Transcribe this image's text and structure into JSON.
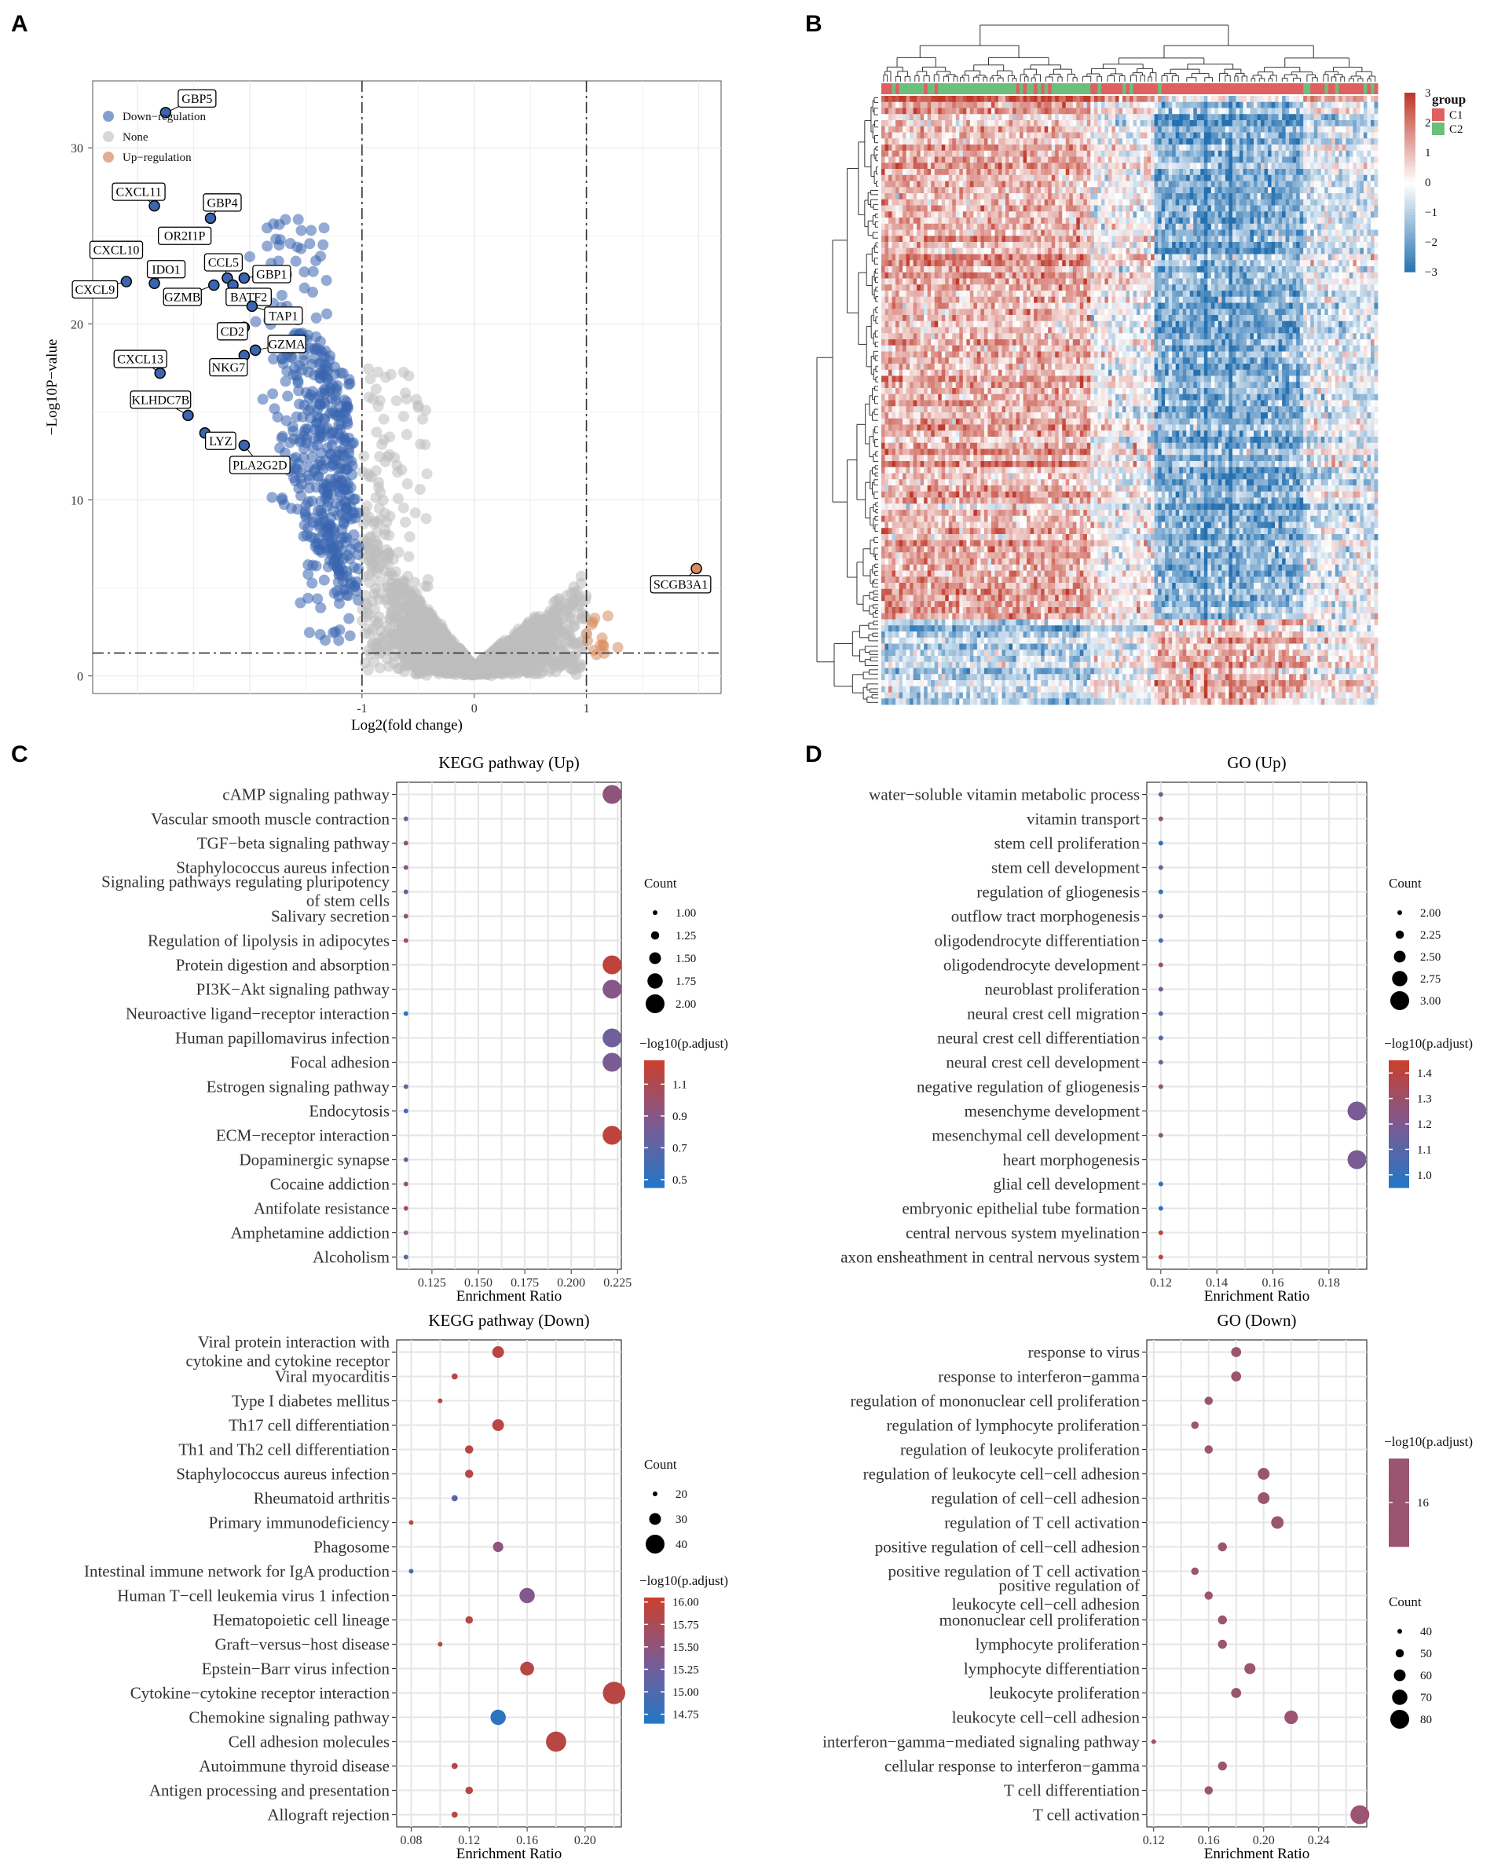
{
  "panel_letters": [
    "A",
    "B",
    "C",
    "D"
  ],
  "chart_data": [
    {
      "id": "A",
      "type": "scatter",
      "title": "",
      "xlabel": "Log2(fold change)",
      "ylabel": "−Log10P−value",
      "xlim": [
        -3.4,
        2.2
      ],
      "ylim": [
        -1,
        33.8
      ],
      "xticks": [
        -1,
        0,
        1
      ],
      "yticks": [
        0,
        10,
        20,
        30
      ],
      "thresholds": {
        "x": [
          -1,
          1
        ],
        "y": 1.3
      },
      "legend": [
        {
          "label": "Down−regulation",
          "color": "#5b7fbf"
        },
        {
          "label": "None",
          "color": "#c9c9c9"
        },
        {
          "label": "Up−regulation",
          "color": "#d9906a"
        }
      ],
      "colors": {
        "down": "#3a66b0",
        "none": "#bdbdbd",
        "up": "#d98a5e"
      },
      "labeled_genes": [
        {
          "gene": "GBP5",
          "x": -2.75,
          "y": 32.0
        },
        {
          "gene": "CXCL11",
          "x": -2.85,
          "y": 26.7
        },
        {
          "gene": "GBP4",
          "x": -2.35,
          "y": 26.0
        },
        {
          "gene": "OR2I1P",
          "x": -2.72,
          "y": 25.0
        },
        {
          "gene": "CXCL10",
          "x": -3.05,
          "y": 24.2
        },
        {
          "gene": "IDO1",
          "x": -2.85,
          "y": 22.3
        },
        {
          "gene": "CCL5",
          "x": -2.2,
          "y": 22.6
        },
        {
          "gene": "GBP1",
          "x": -2.05,
          "y": 22.6
        },
        {
          "gene": "CXCL9",
          "x": -3.1,
          "y": 22.4
        },
        {
          "gene": "GZMB",
          "x": -2.32,
          "y": 22.2
        },
        {
          "gene": "BATF2",
          "x": -2.15,
          "y": 22.2
        },
        {
          "gene": "TAP1",
          "x": -1.98,
          "y": 21.0
        },
        {
          "gene": "CD2",
          "x": -2.05,
          "y": 19.8
        },
        {
          "gene": "GZMA",
          "x": -1.95,
          "y": 18.5
        },
        {
          "gene": "NKG7",
          "x": -2.05,
          "y": 18.2
        },
        {
          "gene": "CXCL13",
          "x": -2.8,
          "y": 17.2
        },
        {
          "gene": "KLHDC7B",
          "x": -2.55,
          "y": 14.8
        },
        {
          "gene": "LYZ",
          "x": -2.4,
          "y": 13.8
        },
        {
          "gene": "PLA2G2D",
          "x": -2.05,
          "y": 13.1
        },
        {
          "gene": "SCGB3A1",
          "x": 1.98,
          "y": 6.1
        }
      ]
    },
    {
      "id": "B",
      "type": "heatmap",
      "legend_title": "group",
      "groups": [
        {
          "name": "C1",
          "color": "#e06060"
        },
        {
          "name": "C2",
          "color": "#6cbf7a"
        }
      ],
      "color_scale": {
        "min": -3,
        "max": 3,
        "ticks": [
          3,
          2,
          1,
          0,
          -1,
          -2,
          -3
        ],
        "low": "#2470b0",
        "mid": "#ffffff",
        "high": "#c0392b"
      },
      "n_rows": 100,
      "n_cols": 140
    },
    {
      "id": "C-up",
      "type": "scatter",
      "title": "KEGG pathway (Up)",
      "xlabel": "Enrichment Ratio",
      "xlim": [
        0.106,
        0.227
      ],
      "xticks": [
        0.125,
        0.15,
        0.175,
        0.2,
        0.225
      ],
      "xtick_labels": [
        "0.125",
        "0.150",
        "0.175",
        "0.200",
        "0.225"
      ],
      "categories": [
        "cAMP signaling pathway",
        "Vascular smooth muscle contraction",
        "TGF−beta signaling pathway",
        "Staphylococcus aureus infection",
        "Signaling pathways regulating pluripotency|of stem cells",
        "Salivary secretion",
        "Regulation of lipolysis in adipocytes",
        "Protein digestion and absorption",
        "PI3K−Akt signaling pathway",
        "Neuroactive ligand−receptor interaction",
        "Human papillomavirus infection",
        "Focal adhesion",
        "Estrogen signaling pathway",
        "Endocytosis",
        "ECM−receptor interaction",
        "Dopaminergic synapse",
        "Cocaine addiction",
        "Antifolate resistance",
        "Amphetamine addiction",
        "Alcoholism"
      ],
      "x": [
        0.222,
        0.111,
        0.111,
        0.111,
        0.111,
        0.111,
        0.111,
        0.222,
        0.222,
        0.111,
        0.222,
        0.222,
        0.111,
        0.111,
        0.222,
        0.111,
        0.111,
        0.111,
        0.111,
        0.111
      ],
      "count": [
        2,
        1,
        1,
        1,
        1,
        1,
        1,
        2,
        2,
        1,
        2,
        2,
        1,
        1,
        2,
        1,
        1,
        1,
        1,
        1
      ],
      "color_value": [
        0.95,
        0.85,
        0.95,
        0.9,
        0.75,
        0.95,
        1.05,
        1.2,
        0.9,
        0.5,
        0.8,
        0.85,
        0.85,
        0.6,
        1.2,
        0.8,
        0.95,
        1.05,
        0.9,
        0.7
      ],
      "size_legend": {
        "title": "Count",
        "values": [
          1.0,
          1.25,
          1.5,
          1.75,
          2.0
        ],
        "labels": [
          "1.00",
          "1.25",
          "1.50",
          "1.75",
          "2.00"
        ]
      },
      "color_legend": {
        "title": "−log10(p.adjust)",
        "range": [
          0.45,
          1.25
        ],
        "ticks": [
          1.1,
          0.9,
          0.7,
          0.5
        ],
        "labels": [
          "1.1",
          "0.9",
          "0.7",
          "0.5"
        ]
      }
    },
    {
      "id": "D-up",
      "type": "scatter",
      "title": "GO (Up)",
      "xlabel": "Enrichment Ratio",
      "xlim": [
        0.115,
        0.1935
      ],
      "xticks": [
        0.12,
        0.14,
        0.16,
        0.18
      ],
      "xtick_labels": [
        "0.12",
        "0.14",
        "0.16",
        "0.18"
      ],
      "categories": [
        "water−soluble vitamin metabolic process",
        "vitamin transport",
        "stem cell proliferation",
        "stem cell development",
        "regulation of gliogenesis",
        "outflow tract morphogenesis",
        "oligodendrocyte differentiation",
        "oligodendrocyte development",
        "neuroblast proliferation",
        "neural crest cell migration",
        "neural crest cell differentiation",
        "neural crest cell development",
        "negative regulation of gliogenesis",
        "mesenchyme development",
        "mesenchymal cell development",
        "heart morphogenesis",
        "glial cell development",
        "embryonic epithelial tube formation",
        "central nervous system myelination",
        "axon ensheathment in central nervous system"
      ],
      "x": [
        0.12,
        0.12,
        0.12,
        0.12,
        0.12,
        0.12,
        0.12,
        0.12,
        0.12,
        0.12,
        0.12,
        0.12,
        0.12,
        0.19,
        0.12,
        0.19,
        0.12,
        0.12,
        0.12,
        0.12
      ],
      "count": [
        2,
        2,
        2,
        2,
        2,
        2,
        2,
        2,
        2,
        2,
        2,
        2,
        2,
        3,
        2,
        3,
        2,
        2,
        2,
        2
      ],
      "color_value": [
        1.2,
        1.3,
        1.0,
        1.2,
        1.0,
        1.2,
        1.05,
        1.3,
        1.2,
        1.1,
        1.1,
        1.2,
        1.3,
        1.2,
        1.25,
        1.2,
        1.0,
        1.0,
        1.4,
        1.4
      ],
      "size_legend": {
        "title": "Count",
        "values": [
          2.0,
          2.25,
          2.5,
          2.75,
          3.0
        ],
        "labels": [
          "2.00",
          "2.25",
          "2.50",
          "2.75",
          "3.00"
        ]
      },
      "color_legend": {
        "title": "−log10(p.adjust)",
        "range": [
          0.95,
          1.45
        ],
        "ticks": [
          1.4,
          1.3,
          1.2,
          1.1,
          1.0
        ],
        "labels": [
          "1.4",
          "1.3",
          "1.2",
          "1.1",
          "1.0"
        ]
      }
    },
    {
      "id": "C-down",
      "type": "scatter",
      "title": "KEGG pathway (Down)",
      "xlabel": "Enrichment Ratio",
      "xlim": [
        0.07,
        0.225
      ],
      "xticks": [
        0.08,
        0.12,
        0.16,
        0.2
      ],
      "xtick_labels": [
        "0.08",
        "0.12",
        "0.16",
        "0.20"
      ],
      "categories": [
        "Viral protein interaction with|cytokine and cytokine receptor",
        "Viral myocarditis",
        "Type I diabetes mellitus",
        "Th17 cell differentiation",
        "Th1 and Th2 cell differentiation",
        "Staphylococcus aureus infection",
        "Rheumatoid arthritis",
        "Primary immunodeficiency",
        "Phagosome",
        "Intestinal immune network for IgA production",
        "Human T−cell leukemia virus 1 infection",
        "Hematopoietic cell lineage",
        "Graft−versus−host disease",
        "Epstein−Barr virus infection",
        "Cytokine−cytokine receptor interaction",
        "Chemokine signaling pathway",
        "Cell adhesion molecules",
        "Autoimmune thyroid disease",
        "Antigen processing and presentation",
        "Allograft rejection"
      ],
      "x": [
        0.14,
        0.11,
        0.1,
        0.14,
        0.12,
        0.12,
        0.11,
        0.08,
        0.14,
        0.08,
        0.16,
        0.12,
        0.1,
        0.16,
        0.22,
        0.14,
        0.18,
        0.11,
        0.12,
        0.11
      ],
      "count": [
        30,
        22,
        20,
        30,
        25,
        25,
        22,
        12,
        28,
        12,
        35,
        24,
        20,
        33,
        45,
        35,
        42,
        22,
        24,
        22
      ],
      "color_value": [
        15.9,
        15.9,
        15.9,
        15.9,
        15.9,
        15.9,
        15.1,
        15.9,
        15.5,
        15.0,
        15.4,
        15.9,
        15.9,
        15.9,
        15.9,
        14.75,
        15.9,
        15.9,
        15.9,
        15.9
      ],
      "size_legend": {
        "title": "Count",
        "values": [
          20,
          30,
          40
        ],
        "labels": [
          "20",
          "30",
          "40"
        ]
      },
      "color_legend": {
        "title": "−log10(p.adjust)",
        "range": [
          14.65,
          16.05
        ],
        "ticks": [
          16.0,
          15.75,
          15.5,
          15.25,
          15.0,
          14.75
        ],
        "labels": [
          "16.00",
          "15.75",
          "15.50",
          "15.25",
          "15.00",
          "14.75"
        ]
      }
    },
    {
      "id": "D-down",
      "type": "scatter",
      "title": "GO (Down)",
      "xlabel": "Enrichment Ratio",
      "xlim": [
        0.115,
        0.275
      ],
      "xticks": [
        0.12,
        0.16,
        0.2,
        0.24
      ],
      "xtick_labels": [
        "0.12",
        "0.16",
        "0.20",
        "0.24"
      ],
      "categories": [
        "response to virus",
        "response to interferon−gamma",
        "regulation of mononuclear cell proliferation",
        "regulation of lymphocyte proliferation",
        "regulation of leukocyte proliferation",
        "regulation of leukocyte cell−cell adhesion",
        "regulation of cell−cell adhesion",
        "regulation of T cell activation",
        "positive regulation of cell−cell adhesion",
        "positive regulation of T cell activation",
        "positive regulation of|leukocyte cell−cell adhesion",
        "mononuclear cell proliferation",
        "lymphocyte proliferation",
        "lymphocyte differentiation",
        "leukocyte proliferation",
        "leukocyte cell−cell adhesion",
        "interferon−gamma−mediated signaling pathway",
        "cellular response to interferon−gamma",
        "T cell differentiation",
        "T cell activation"
      ],
      "x": [
        0.18,
        0.18,
        0.16,
        0.15,
        0.16,
        0.2,
        0.2,
        0.21,
        0.17,
        0.15,
        0.16,
        0.17,
        0.17,
        0.19,
        0.18,
        0.22,
        0.12,
        0.17,
        0.16,
        0.27
      ],
      "count": [
        55,
        55,
        50,
        48,
        50,
        60,
        60,
        62,
        52,
        48,
        50,
        52,
        52,
        58,
        55,
        65,
        35,
        52,
        50,
        80
      ],
      "color_value": [
        16,
        16,
        16,
        16,
        16,
        16,
        16,
        16,
        16,
        16,
        16,
        16,
        16,
        16,
        16,
        16,
        16,
        16,
        16,
        16
      ],
      "size_legend": {
        "title": "Count",
        "values": [
          40,
          50,
          60,
          70,
          80
        ],
        "labels": [
          "40",
          "50",
          "60",
          "70",
          "80"
        ]
      },
      "color_legend": {
        "title": "−log10(p.adjust)",
        "range": [
          15,
          17
        ],
        "ticks": [
          16
        ],
        "labels": [
          "16"
        ],
        "single_color": true
      }
    }
  ]
}
